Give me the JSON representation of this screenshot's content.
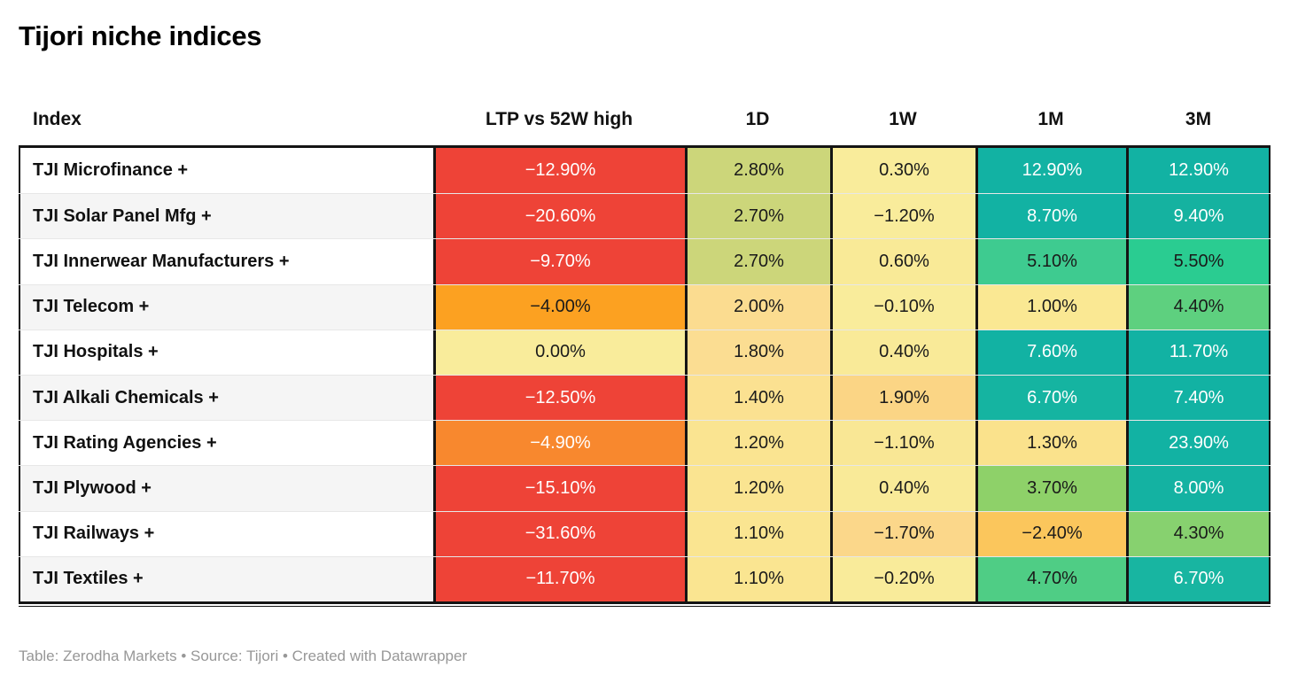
{
  "title": "Tijori niche indices",
  "columns": [
    {
      "key": "index",
      "label": "Index"
    },
    {
      "key": "ltp",
      "label": "LTP vs 52W high"
    },
    {
      "key": "1d",
      "label": "1D"
    },
    {
      "key": "1w",
      "label": "1W"
    },
    {
      "key": "1m",
      "label": "1M"
    },
    {
      "key": "3m",
      "label": "3M"
    }
  ],
  "rows": [
    {
      "name": "TJI Microfinance +",
      "cells": [
        {
          "value": "−12.90%",
          "bg": "#ee4337",
          "fg": "#ffffff"
        },
        {
          "value": "2.80%",
          "bg": "#ccd67a",
          "fg": "#1a1a1a"
        },
        {
          "value": "0.30%",
          "bg": "#f9ec9b",
          "fg": "#1a1a1a"
        },
        {
          "value": "12.90%",
          "bg": "#12b2a3",
          "fg": "#ffffff"
        },
        {
          "value": "12.90%",
          "bg": "#12b2a3",
          "fg": "#ffffff"
        }
      ]
    },
    {
      "name": "TJI Solar Panel Mfg +",
      "cells": [
        {
          "value": "−20.60%",
          "bg": "#ee4337",
          "fg": "#ffffff"
        },
        {
          "value": "2.70%",
          "bg": "#ccd67a",
          "fg": "#1a1a1a"
        },
        {
          "value": "−1.20%",
          "bg": "#f9ec9b",
          "fg": "#1a1a1a"
        },
        {
          "value": "8.70%",
          "bg": "#12b2a3",
          "fg": "#ffffff"
        },
        {
          "value": "9.40%",
          "bg": "#15b2a0",
          "fg": "#ffffff"
        }
      ]
    },
    {
      "name": "TJI Innerwear Manufacturers +",
      "cells": [
        {
          "value": "−9.70%",
          "bg": "#ee4337",
          "fg": "#ffffff"
        },
        {
          "value": "2.70%",
          "bg": "#ccd67a",
          "fg": "#1a1a1a"
        },
        {
          "value": "0.60%",
          "bg": "#f9ea97",
          "fg": "#1a1a1a"
        },
        {
          "value": "5.10%",
          "bg": "#3ecb90",
          "fg": "#1a1a1a"
        },
        {
          "value": "5.50%",
          "bg": "#2acc91",
          "fg": "#1a1a1a"
        }
      ]
    },
    {
      "name": "TJI Telecom +",
      "cells": [
        {
          "value": "−4.00%",
          "bg": "#fca121",
          "fg": "#1a1a1a"
        },
        {
          "value": "2.00%",
          "bg": "#fbdc90",
          "fg": "#1a1a1a"
        },
        {
          "value": "−0.10%",
          "bg": "#f9ec9b",
          "fg": "#1a1a1a"
        },
        {
          "value": "1.00%",
          "bg": "#fae893",
          "fg": "#1a1a1a"
        },
        {
          "value": "4.40%",
          "bg": "#5ed07f",
          "fg": "#1a1a1a"
        }
      ]
    },
    {
      "name": "TJI Hospitals +",
      "cells": [
        {
          "value": "0.00%",
          "bg": "#f9ec9b",
          "fg": "#1a1a1a"
        },
        {
          "value": "1.80%",
          "bg": "#fbdd92",
          "fg": "#1a1a1a"
        },
        {
          "value": "0.40%",
          "bg": "#f9ea98",
          "fg": "#1a1a1a"
        },
        {
          "value": "7.60%",
          "bg": "#12b2a3",
          "fg": "#ffffff"
        },
        {
          "value": "11.70%",
          "bg": "#12b2a3",
          "fg": "#ffffff"
        }
      ]
    },
    {
      "name": "TJI Alkali Chemicals +",
      "cells": [
        {
          "value": "−12.50%",
          "bg": "#ee4337",
          "fg": "#ffffff"
        },
        {
          "value": "1.40%",
          "bg": "#fbe191",
          "fg": "#1a1a1a"
        },
        {
          "value": "1.90%",
          "bg": "#fbd585",
          "fg": "#1a1a1a"
        },
        {
          "value": "6.70%",
          "bg": "#15b4a1",
          "fg": "#ffffff"
        },
        {
          "value": "7.40%",
          "bg": "#12b2a3",
          "fg": "#ffffff"
        }
      ]
    },
    {
      "name": "TJI Rating Agencies +",
      "cells": [
        {
          "value": "−4.90%",
          "bg": "#f8882e",
          "fg": "#ffffff"
        },
        {
          "value": "1.20%",
          "bg": "#fae491",
          "fg": "#1a1a1a"
        },
        {
          "value": "−1.10%",
          "bg": "#f9e795",
          "fg": "#1a1a1a"
        },
        {
          "value": "1.30%",
          "bg": "#fae28c",
          "fg": "#1a1a1a"
        },
        {
          "value": "23.90%",
          "bg": "#12b2a3",
          "fg": "#ffffff"
        }
      ]
    },
    {
      "name": "TJI Plywood +",
      "cells": [
        {
          "value": "−15.10%",
          "bg": "#ee4337",
          "fg": "#ffffff"
        },
        {
          "value": "1.20%",
          "bg": "#fae491",
          "fg": "#1a1a1a"
        },
        {
          "value": "0.40%",
          "bg": "#f9ea98",
          "fg": "#1a1a1a"
        },
        {
          "value": "3.70%",
          "bg": "#8ed169",
          "fg": "#1a1a1a"
        },
        {
          "value": "8.00%",
          "bg": "#14b2a2",
          "fg": "#ffffff"
        }
      ]
    },
    {
      "name": "TJI Railways +",
      "cells": [
        {
          "value": "−31.60%",
          "bg": "#ee4337",
          "fg": "#ffffff"
        },
        {
          "value": "1.10%",
          "bg": "#fae591",
          "fg": "#1a1a1a"
        },
        {
          "value": "−1.70%",
          "bg": "#fbd78a",
          "fg": "#1a1a1a"
        },
        {
          "value": "−2.40%",
          "bg": "#fbc65c",
          "fg": "#1a1a1a"
        },
        {
          "value": "4.30%",
          "bg": "#87d16f",
          "fg": "#1a1a1a"
        }
      ]
    },
    {
      "name": "TJI Textiles +",
      "cells": [
        {
          "value": "−11.70%",
          "bg": "#ee4337",
          "fg": "#ffffff"
        },
        {
          "value": "1.10%",
          "bg": "#fae591",
          "fg": "#1a1a1a"
        },
        {
          "value": "−0.20%",
          "bg": "#f9eb9a",
          "fg": "#1a1a1a"
        },
        {
          "value": "4.70%",
          "bg": "#4fcd85",
          "fg": "#1a1a1a"
        },
        {
          "value": "6.70%",
          "bg": "#18b5a1",
          "fg": "#ffffff"
        }
      ]
    }
  ],
  "footer": {
    "prefix": "Table: ",
    "table_credit": "Zerodha Markets",
    "sep1": " • ",
    "source_label": "Source: ",
    "source": "Tijori",
    "sep2": " • ",
    "created_label": "Created with ",
    "tool": "Datawrapper"
  },
  "colors": {
    "accent_red": "#ee4337",
    "accent_orange": "#fca121",
    "accent_yellow": "#f9ec9b",
    "accent_green": "#4fcd85",
    "accent_teal": "#12b2a3",
    "border_black": "#141414",
    "row_alt_bg": "#f5f5f5",
    "footer_gray": "#979797"
  },
  "chart_data": {
    "type": "table",
    "title": "Tijori niche indices",
    "columns": [
      "Index",
      "LTP vs 52W high",
      "1D",
      "1W",
      "1M",
      "3M"
    ],
    "units": "%",
    "color_scale": "red-yellow-green heatmap on value columns",
    "rows": [
      [
        "TJI Microfinance +",
        -12.9,
        2.8,
        0.3,
        12.9,
        12.9
      ],
      [
        "TJI Solar Panel Mfg +",
        -20.6,
        2.7,
        -1.2,
        8.7,
        9.4
      ],
      [
        "TJI Innerwear Manufacturers +",
        -9.7,
        2.7,
        0.6,
        5.1,
        5.5
      ],
      [
        "TJI Telecom +",
        -4.0,
        2.0,
        -0.1,
        1.0,
        4.4
      ],
      [
        "TJI Hospitals +",
        0.0,
        1.8,
        0.4,
        7.6,
        11.7
      ],
      [
        "TJI Alkali Chemicals +",
        -12.5,
        1.4,
        1.9,
        6.7,
        7.4
      ],
      [
        "TJI Rating Agencies +",
        -4.9,
        1.2,
        -1.1,
        1.3,
        23.9
      ],
      [
        "TJI Plywood +",
        -15.1,
        1.2,
        0.4,
        3.7,
        8.0
      ],
      [
        "TJI Railways +",
        -31.6,
        1.1,
        -1.7,
        -2.4,
        4.3
      ],
      [
        "TJI Textiles +",
        -11.7,
        1.1,
        -0.2,
        4.7,
        6.7
      ]
    ]
  }
}
